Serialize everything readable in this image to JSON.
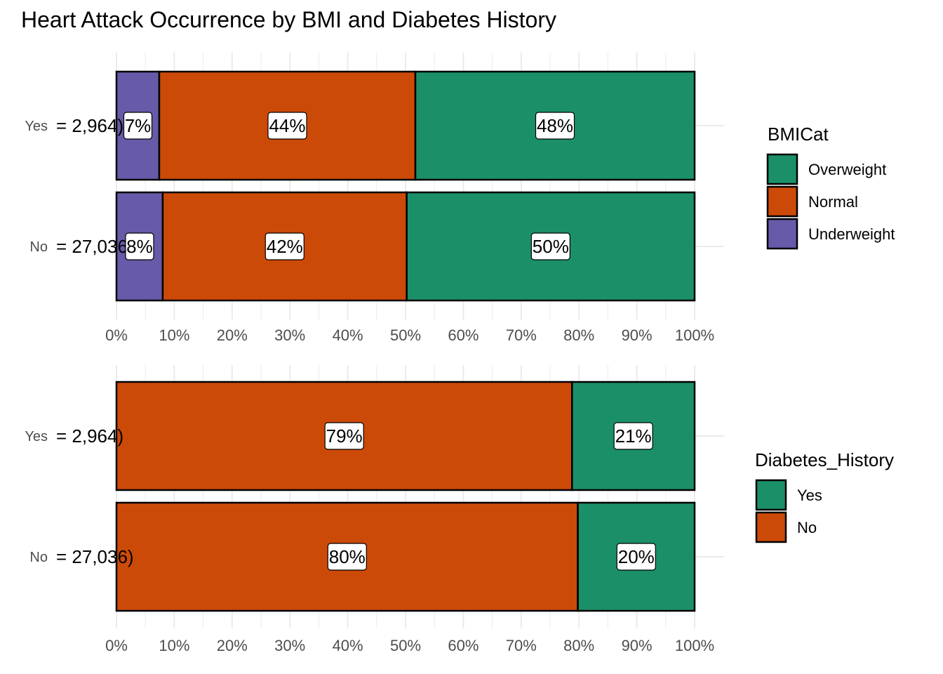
{
  "title": "Heart Attack Occurrence by BMI and Diabetes History",
  "colors": {
    "Overweight": "#1b9068",
    "Normal": "#cc4a08",
    "Underweight": "#675aa8",
    "Yes": "#1b9068",
    "No": "#cc4a08"
  },
  "chart_data": [
    {
      "type": "bar",
      "orientation": "horizontal",
      "stacked": "percent",
      "categories": [
        "Yes",
        "No"
      ],
      "n_labels": [
        "= 2,964)",
        "= 27,036)"
      ],
      "series": [
        {
          "name": "Underweight",
          "values": [
            7.4,
            8.0
          ],
          "labels": [
            "7%",
            "8%"
          ]
        },
        {
          "name": "Normal",
          "values": [
            44.3,
            42.2
          ],
          "labels": [
            "44%",
            "42%"
          ]
        },
        {
          "name": "Overweight",
          "values": [
            48.3,
            49.8
          ],
          "labels": [
            "48%",
            "50%"
          ]
        }
      ],
      "legend_title": "BMICat",
      "legend_items": [
        "Overweight",
        "Normal",
        "Underweight"
      ],
      "xlim": [
        0,
        100
      ],
      "xticks": [
        "0%",
        "10%",
        "20%",
        "30%",
        "40%",
        "50%",
        "60%",
        "70%",
        "80%",
        "90%",
        "100%"
      ],
      "grid": true,
      "legend_position": "right"
    },
    {
      "type": "bar",
      "orientation": "horizontal",
      "stacked": "percent",
      "categories": [
        "Yes",
        "No"
      ],
      "n_labels": [
        "= 2,964)",
        "= 27,036)"
      ],
      "series": [
        {
          "name": "No",
          "values": [
            78.8,
            79.8
          ],
          "labels": [
            "79%",
            "80%"
          ]
        },
        {
          "name": "Yes",
          "values": [
            21.2,
            20.2
          ],
          "labels": [
            "21%",
            "20%"
          ]
        }
      ],
      "legend_title": "Diabetes_History",
      "legend_items": [
        "Yes",
        "No"
      ],
      "xlim": [
        0,
        100
      ],
      "xticks": [
        "0%",
        "10%",
        "20%",
        "30%",
        "40%",
        "50%",
        "60%",
        "70%",
        "80%",
        "90%",
        "100%"
      ],
      "grid": true,
      "legend_position": "right"
    }
  ]
}
